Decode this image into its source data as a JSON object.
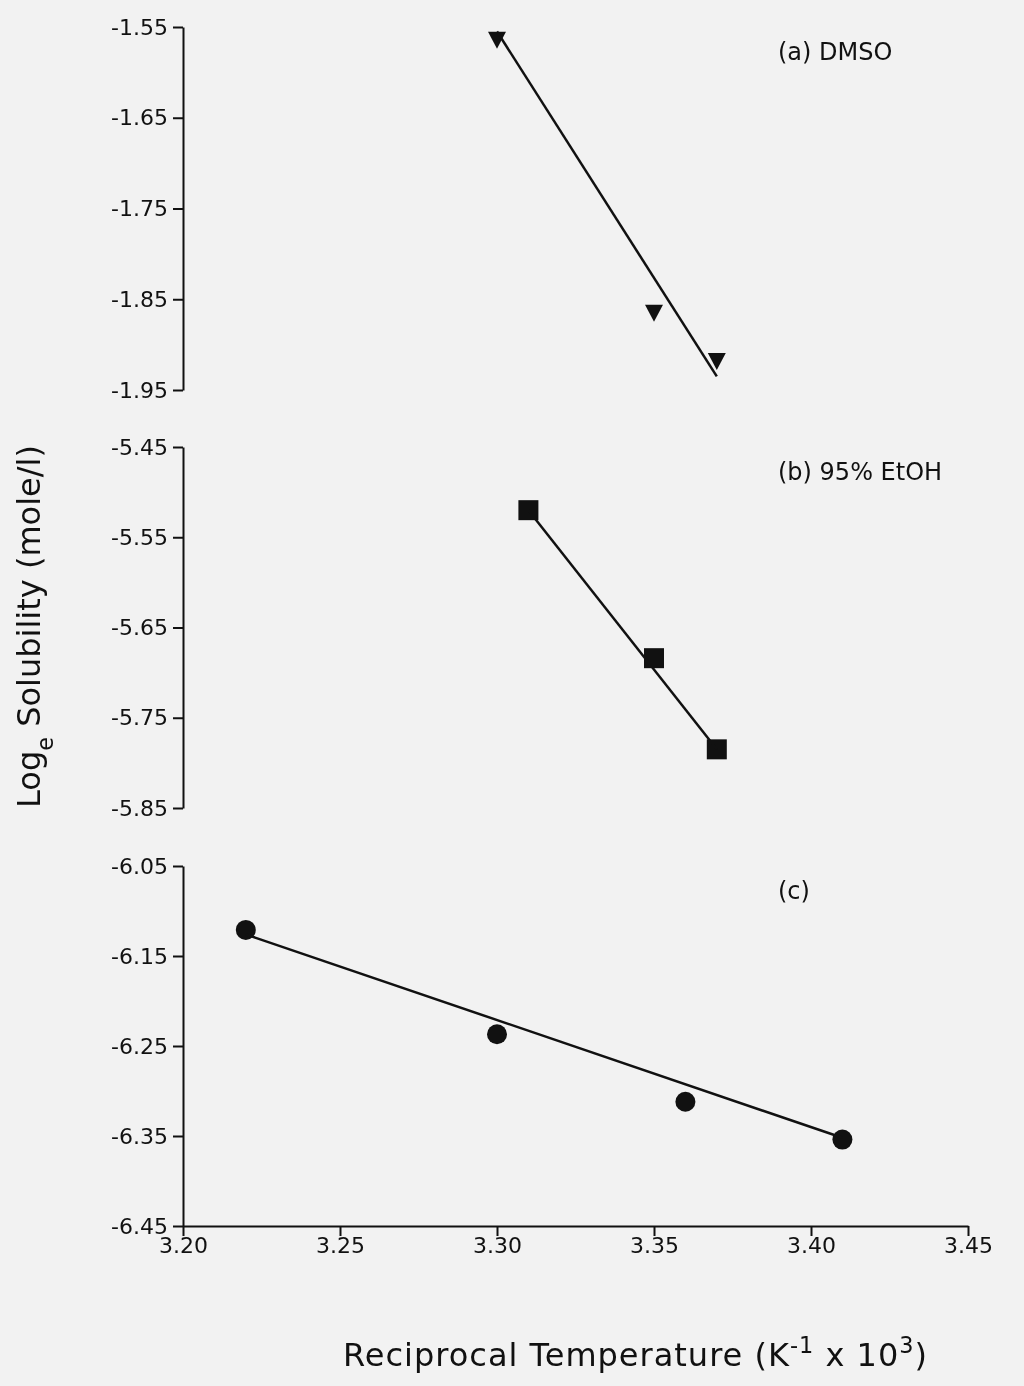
{
  "chart_data": [
    {
      "type": "scatter",
      "annotations": [
        "(a) DMSO"
      ],
      "xlim": [
        3.2,
        3.45
      ],
      "ylim": [
        -1.95,
        -1.55
      ],
      "yticks": [
        -1.55,
        -1.65,
        -1.75,
        -1.85,
        -1.95
      ],
      "tick_labels": "y",
      "grid": false,
      "series": [
        {
          "type": "scatter",
          "marker": "triangle",
          "color": "#111111",
          "x": [
            3.3,
            3.35,
            3.37
          ],
          "values": [
            -1.564,
            -1.865,
            -1.918
          ]
        },
        {
          "type": "line",
          "marker": "none",
          "color": "#111111",
          "x": [
            3.3,
            3.37
          ],
          "values": [
            -1.555,
            -1.935
          ]
        }
      ]
    },
    {
      "type": "scatter",
      "ylabel": "Log$_{e}$ Solubility (mole/l)",
      "annotations": [
        "(b) 95% EtOH"
      ],
      "xlim": [
        3.2,
        3.45
      ],
      "ylim": [
        -5.85,
        -5.45
      ],
      "yticks": [
        -5.45,
        -5.55,
        -5.65,
        -5.75,
        -5.85
      ],
      "tick_labels": "y",
      "grid": false,
      "series": [
        {
          "type": "scatter",
          "marker": "square",
          "color": "#111111",
          "x": [
            3.31,
            3.35,
            3.37
          ],
          "values": [
            -5.52,
            -5.684,
            -5.785
          ]
        },
        {
          "type": "line",
          "marker": "none",
          "color": "#111111",
          "x": [
            3.31,
            3.37
          ],
          "values": [
            -5.52,
            -5.785
          ]
        }
      ]
    },
    {
      "type": "scatter",
      "xlabel": "Reciprocal Temperature (K$^{-1}$ x 10$^{3}$)",
      "annotations": [
        "(c)"
      ],
      "xlim": [
        3.2,
        3.45
      ],
      "xticks": [
        {
          "value": 3.2,
          "label": "3.20"
        },
        3.25,
        {
          "value": 3.3,
          "label": "3.30"
        },
        3.35,
        {
          "value": 3.4,
          "label": "3.40"
        },
        3.45
      ],
      "ylim": [
        -6.45,
        -6.05
      ],
      "yticks": [
        -6.05,
        -6.15,
        -6.25,
        -6.35,
        -6.45
      ],
      "grid": false,
      "series": [
        {
          "type": "scatter",
          "marker": "circle",
          "color": "#111111",
          "x": [
            3.22,
            3.3,
            3.36,
            3.41
          ],
          "values": [
            -6.121,
            -6.237,
            -6.312,
            -6.354
          ]
        },
        {
          "type": "line",
          "marker": "none",
          "color": "#111111",
          "x": [
            3.22,
            3.41
          ],
          "values": [
            -6.126,
            -6.352
          ]
        }
      ]
    }
  ]
}
